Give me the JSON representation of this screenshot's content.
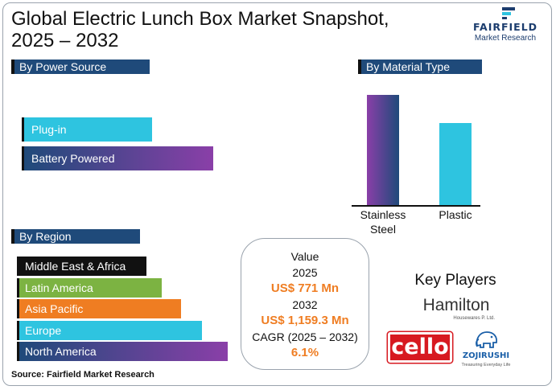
{
  "header": {
    "title_line1": "Global Electric Lunch Box Market Snapshot,",
    "title_line2": "2025 – 2032",
    "logo_name": "FAIRFIELD",
    "logo_sub": "Market Research"
  },
  "colors": {
    "header_bg": "#1f4a7a",
    "cyan": "#2ec4e0",
    "navy": "#1f4a7a",
    "purple": "#8a3fa8",
    "black": "#111111",
    "green": "#7cb342",
    "orange": "#ef7d22"
  },
  "chart_data": [
    {
      "type": "bar",
      "orientation": "horizontal",
      "title": "By Power Source",
      "categories": [
        "Plug-in",
        "Battery Powered"
      ],
      "values": [
        65,
        100
      ],
      "colors": [
        "#2ec4e0",
        "gradient-navy-purple"
      ]
    },
    {
      "type": "bar",
      "orientation": "vertical",
      "title": "By Material Type",
      "categories": [
        "Stainless Steel",
        "Plastic"
      ],
      "values": [
        100,
        73
      ],
      "colors": [
        "gradient-purple-navy",
        "#2ec4e0"
      ]
    },
    {
      "type": "bar",
      "orientation": "horizontal",
      "title": "By Region",
      "categories": [
        "Middle East & Africa",
        "Latin America",
        "Asia Pacific",
        "Europe",
        "North America"
      ],
      "values": [
        56,
        67,
        76,
        85,
        100
      ],
      "colors": [
        "#111111",
        "#7cb342",
        "#ef7d22",
        "#2ec4e0",
        "gradient-navy-purple"
      ]
    }
  ],
  "value_box": {
    "label": "Value",
    "year1": "2025",
    "value1": "US$ 771 Mn",
    "year2": "2032",
    "value2": "US$ 1,159.3 Mn",
    "cagr_label": "CAGR (2025 – 2032)",
    "cagr_value": "6.1%"
  },
  "key_players": {
    "title": "Key Players",
    "hamilton": "Hamilton",
    "hamilton_sub": "Housewares P. Ltd.",
    "cello": "cello",
    "zojirushi": "ZOJIRUSHI",
    "zojirushi_sub": "Treasuring Everyday Life"
  },
  "source": "Source: Fairfield Market Research"
}
